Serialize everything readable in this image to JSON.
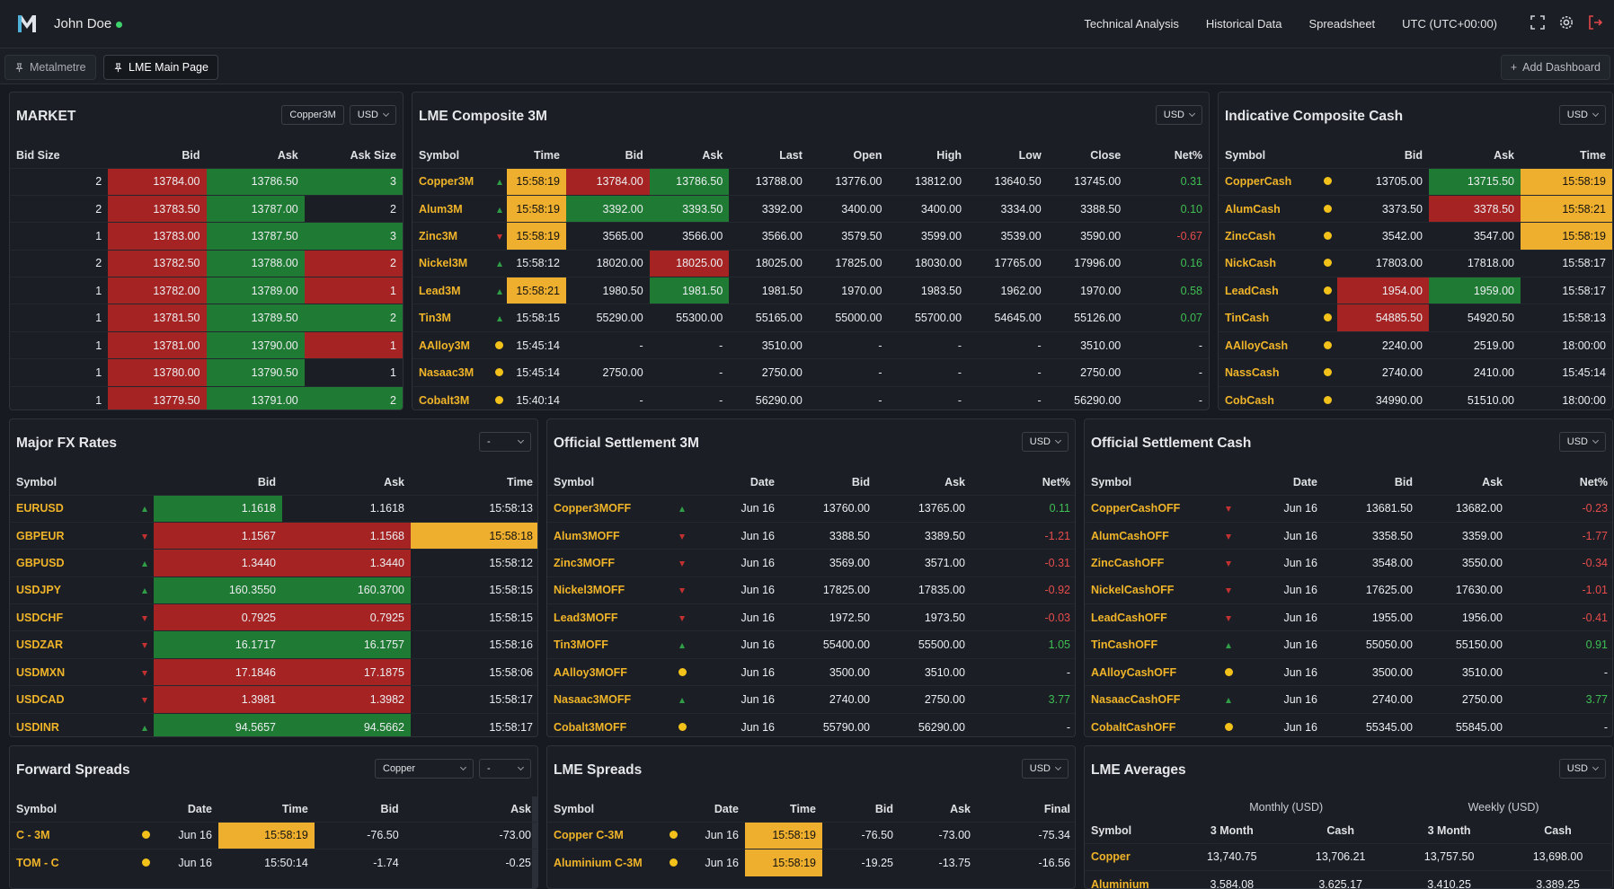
{
  "user": {
    "name": "John Doe"
  },
  "nav": [
    "Technical Analysis",
    "Historical Data",
    "Spreadsheet",
    "UTC (UTC+00:00)"
  ],
  "tabs": [
    "Metalmetre",
    "LME Main Page"
  ],
  "add_dashboard": "Add Dashboard",
  "market": {
    "title": "MARKET",
    "symbol_select": "Copper3M",
    "currency": "USD",
    "headers": [
      "Bid Size",
      "Bid",
      "Ask",
      "Ask Size"
    ],
    "rows": [
      [
        "2",
        "13784.00",
        "13786.50",
        "3",
        "r",
        "g",
        "",
        "g"
      ],
      [
        "2",
        "13783.50",
        "13787.00",
        "2",
        "r",
        "g",
        "",
        ""
      ],
      [
        "1",
        "13783.00",
        "13787.50",
        "3",
        "r",
        "g",
        "",
        "g"
      ],
      [
        "2",
        "13782.50",
        "13788.00",
        "2",
        "r",
        "g",
        "",
        "r"
      ],
      [
        "1",
        "13782.00",
        "13789.00",
        "1",
        "r",
        "g",
        "",
        "r"
      ],
      [
        "1",
        "13781.50",
        "13789.50",
        "2",
        "r",
        "g",
        "",
        "g"
      ],
      [
        "1",
        "13781.00",
        "13790.00",
        "1",
        "r",
        "g",
        "",
        "r"
      ],
      [
        "1",
        "13780.00",
        "13790.50",
        "1",
        "r",
        "g",
        "",
        ""
      ],
      [
        "1",
        "13779.50",
        "13791.00",
        "2",
        "r",
        "g",
        "",
        "g"
      ]
    ]
  },
  "composite3m": {
    "title": "LME Composite 3M",
    "currency": "USD",
    "headers": [
      "Symbol",
      "",
      "Time",
      "Bid",
      "Ask",
      "Last",
      "Open",
      "High",
      "Low",
      "Close",
      "Net%"
    ],
    "rows": [
      {
        "s": "Copper3M",
        "i": "up",
        "t": "15:58:19",
        "tc": "y",
        "b": "13784.00",
        "bc": "r",
        "a": "13786.50",
        "ac": "g",
        "l": "13788.00",
        "o": "13776.00",
        "h": "13812.00",
        "lo": "13640.50",
        "c": "13745.00",
        "n": "0.31",
        "nc": "pos"
      },
      {
        "s": "Alum3M",
        "i": "up",
        "t": "15:58:19",
        "tc": "y",
        "b": "3392.00",
        "bc": "g",
        "a": "3393.50",
        "ac": "g",
        "l": "3392.00",
        "o": "3400.00",
        "h": "3400.00",
        "lo": "3334.00",
        "c": "3388.50",
        "n": "0.10",
        "nc": "pos"
      },
      {
        "s": "Zinc3M",
        "i": "dn",
        "t": "15:58:19",
        "tc": "y",
        "b": "3565.00",
        "bc": "",
        "a": "3566.00",
        "ac": "",
        "l": "3566.00",
        "o": "3579.50",
        "h": "3599.00",
        "lo": "3539.00",
        "c": "3590.00",
        "n": "-0.67",
        "nc": "neg"
      },
      {
        "s": "Nickel3M",
        "i": "up",
        "t": "15:58:12",
        "tc": "",
        "b": "18020.00",
        "bc": "",
        "a": "18025.00",
        "ac": "r",
        "l": "18025.00",
        "o": "17825.00",
        "h": "18030.00",
        "lo": "17765.00",
        "c": "17996.00",
        "n": "0.16",
        "nc": "pos"
      },
      {
        "s": "Lead3M",
        "i": "up",
        "t": "15:58:21",
        "tc": "y",
        "b": "1980.50",
        "bc": "",
        "a": "1981.50",
        "ac": "g",
        "l": "1981.50",
        "o": "1970.00",
        "h": "1983.50",
        "lo": "1962.00",
        "c": "1970.00",
        "n": "0.58",
        "nc": "pos"
      },
      {
        "s": "Tin3M",
        "i": "up",
        "t": "15:58:15",
        "tc": "",
        "b": "55290.00",
        "bc": "",
        "a": "55300.00",
        "ac": "",
        "l": "55165.00",
        "o": "55000.00",
        "h": "55700.00",
        "lo": "54645.00",
        "c": "55126.00",
        "n": "0.07",
        "nc": "pos"
      },
      {
        "s": "AAlloy3M",
        "i": "dot",
        "t": "15:45:14",
        "tc": "",
        "b": "-",
        "bc": "",
        "a": "-",
        "ac": "",
        "l": "3510.00",
        "o": "-",
        "h": "-",
        "lo": "-",
        "c": "3510.00",
        "n": "-",
        "nc": ""
      },
      {
        "s": "Nasaac3M",
        "i": "dot",
        "t": "15:45:14",
        "tc": "",
        "b": "2750.00",
        "bc": "",
        "a": "-",
        "ac": "",
        "l": "2750.00",
        "o": "-",
        "h": "-",
        "lo": "-",
        "c": "2750.00",
        "n": "-",
        "nc": ""
      },
      {
        "s": "Cobalt3M",
        "i": "dot",
        "t": "15:40:14",
        "tc": "",
        "b": "-",
        "bc": "",
        "a": "-",
        "ac": "",
        "l": "56290.00",
        "o": "-",
        "h": "-",
        "lo": "-",
        "c": "56290.00",
        "n": "-",
        "nc": ""
      }
    ]
  },
  "indcash": {
    "title": "Indicative Composite Cash",
    "currency": "USD",
    "headers": [
      "Symbol",
      "",
      "Bid",
      "Ask",
      "Time"
    ],
    "rows": [
      {
        "s": "CopperCash",
        "b": "13705.00",
        "bc": "",
        "a": "13715.50",
        "ac": "g",
        "t": "15:58:19",
        "tc": "y"
      },
      {
        "s": "AlumCash",
        "b": "3373.50",
        "bc": "",
        "a": "3378.50",
        "ac": "r",
        "t": "15:58:21",
        "tc": "y"
      },
      {
        "s": "ZincCash",
        "b": "3542.00",
        "bc": "",
        "a": "3547.00",
        "ac": "",
        "t": "15:58:19",
        "tc": "y"
      },
      {
        "s": "NickCash",
        "b": "17803.00",
        "bc": "",
        "a": "17818.00",
        "ac": "",
        "t": "15:58:17",
        "tc": ""
      },
      {
        "s": "LeadCash",
        "b": "1954.00",
        "bc": "r",
        "a": "1959.00",
        "ac": "g",
        "t": "15:58:17",
        "tc": ""
      },
      {
        "s": "TinCash",
        "b": "54885.50",
        "bc": "r",
        "a": "54920.50",
        "ac": "",
        "t": "15:58:13",
        "tc": ""
      },
      {
        "s": "AAlloyCash",
        "b": "2240.00",
        "bc": "",
        "a": "2519.00",
        "ac": "",
        "t": "18:00:00",
        "tc": ""
      },
      {
        "s": "NassCash",
        "b": "2740.00",
        "bc": "",
        "a": "2410.00",
        "ac": "",
        "t": "15:45:14",
        "tc": ""
      },
      {
        "s": "CobCash",
        "b": "34990.00",
        "bc": "",
        "a": "51510.00",
        "ac": "",
        "t": "18:00:00",
        "tc": ""
      }
    ]
  },
  "fx": {
    "title": "Major FX Rates",
    "select": "-",
    "headers": [
      "Symbol",
      "",
      "Bid",
      "Ask",
      "Time"
    ],
    "rows": [
      {
        "s": "EURUSD",
        "i": "up",
        "b": "1.1618",
        "bc": "g",
        "a": "1.1618",
        "ac": "",
        "t": "15:58:13",
        "tc": ""
      },
      {
        "s": "GBPEUR",
        "i": "dn",
        "b": "1.1567",
        "bc": "r",
        "a": "1.1568",
        "ac": "r",
        "t": "15:58:18",
        "tc": "y"
      },
      {
        "s": "GBPUSD",
        "i": "up",
        "b": "1.3440",
        "bc": "r",
        "a": "1.3440",
        "ac": "r",
        "t": "15:58:12",
        "tc": ""
      },
      {
        "s": "USDJPY",
        "i": "up",
        "b": "160.3550",
        "bc": "g",
        "a": "160.3700",
        "ac": "g",
        "t": "15:58:15",
        "tc": ""
      },
      {
        "s": "USDCHF",
        "i": "dn",
        "b": "0.7925",
        "bc": "r",
        "a": "0.7925",
        "ac": "r",
        "t": "15:58:15",
        "tc": ""
      },
      {
        "s": "USDZAR",
        "i": "dn",
        "b": "16.1717",
        "bc": "g",
        "a": "16.1757",
        "ac": "g",
        "t": "15:58:16",
        "tc": ""
      },
      {
        "s": "USDMXN",
        "i": "dn",
        "b": "17.1846",
        "bc": "r",
        "a": "17.1875",
        "ac": "r",
        "t": "15:58:06",
        "tc": ""
      },
      {
        "s": "USDCAD",
        "i": "dn",
        "b": "1.3981",
        "bc": "r",
        "a": "1.3982",
        "ac": "r",
        "t": "15:58:17",
        "tc": ""
      },
      {
        "s": "USDINR",
        "i": "up",
        "b": "94.5657",
        "bc": "g",
        "a": "94.5662",
        "ac": "g",
        "t": "15:58:17",
        "tc": ""
      }
    ]
  },
  "os3m": {
    "title": "Official Settlement 3M",
    "currency": "USD",
    "headers": [
      "Symbol",
      "",
      "Date",
      "Bid",
      "Ask",
      "Net%"
    ],
    "rows": [
      {
        "s": "Copper3MOFF",
        "i": "up",
        "d": "Jun 16",
        "b": "13760.00",
        "a": "13765.00",
        "n": "0.11",
        "nc": "pos"
      },
      {
        "s": "Alum3MOFF",
        "i": "dn",
        "d": "Jun 16",
        "b": "3388.50",
        "a": "3389.50",
        "n": "-1.21",
        "nc": "neg"
      },
      {
        "s": "Zinc3MOFF",
        "i": "dn",
        "d": "Jun 16",
        "b": "3569.00",
        "a": "3571.00",
        "n": "-0.31",
        "nc": "neg"
      },
      {
        "s": "Nickel3MOFF",
        "i": "dn",
        "d": "Jun 16",
        "b": "17825.00",
        "a": "17835.00",
        "n": "-0.92",
        "nc": "neg"
      },
      {
        "s": "Lead3MOFF",
        "i": "dn",
        "d": "Jun 16",
        "b": "1972.50",
        "a": "1973.50",
        "n": "-0.03",
        "nc": "neg"
      },
      {
        "s": "Tin3MOFF",
        "i": "up",
        "d": "Jun 16",
        "b": "55400.00",
        "a": "55500.00",
        "n": "1.05",
        "nc": "pos"
      },
      {
        "s": "AAlloy3MOFF",
        "i": "dot",
        "d": "Jun 16",
        "b": "3500.00",
        "a": "3510.00",
        "n": "-",
        "nc": ""
      },
      {
        "s": "Nasaac3MOFF",
        "i": "up",
        "d": "Jun 16",
        "b": "2740.00",
        "a": "2750.00",
        "n": "3.77",
        "nc": "pos"
      },
      {
        "s": "Cobalt3MOFF",
        "i": "dot",
        "d": "Jun 16",
        "b": "55790.00",
        "a": "56290.00",
        "n": "-",
        "nc": ""
      }
    ]
  },
  "oscash": {
    "title": "Official Settlement Cash",
    "currency": "USD",
    "headers": [
      "Symbol",
      "",
      "Date",
      "Bid",
      "Ask",
      "Net%"
    ],
    "rows": [
      {
        "s": "CopperCashOFF",
        "i": "dn",
        "d": "Jun 16",
        "b": "13681.50",
        "a": "13682.00",
        "n": "-0.23",
        "nc": "neg"
      },
      {
        "s": "AlumCashOFF",
        "i": "dn",
        "d": "Jun 16",
        "b": "3358.50",
        "a": "3359.00",
        "n": "-1.77",
        "nc": "neg"
      },
      {
        "s": "ZincCashOFF",
        "i": "dn",
        "d": "Jun 16",
        "b": "3548.00",
        "a": "3550.00",
        "n": "-0.34",
        "nc": "neg"
      },
      {
        "s": "NickelCashOFF",
        "i": "dn",
        "d": "Jun 16",
        "b": "17625.00",
        "a": "17630.00",
        "n": "-1.01",
        "nc": "neg"
      },
      {
        "s": "LeadCashOFF",
        "i": "dn",
        "d": "Jun 16",
        "b": "1955.00",
        "a": "1956.00",
        "n": "-0.41",
        "nc": "neg"
      },
      {
        "s": "TinCashOFF",
        "i": "up",
        "d": "Jun 16",
        "b": "55050.00",
        "a": "55150.00",
        "n": "0.91",
        "nc": "pos"
      },
      {
        "s": "AAlloyCashOFF",
        "i": "dot",
        "d": "Jun 16",
        "b": "3500.00",
        "a": "3510.00",
        "n": "-",
        "nc": ""
      },
      {
        "s": "NasaacCashOFF",
        "i": "up",
        "d": "Jun 16",
        "b": "2740.00",
        "a": "2750.00",
        "n": "3.77",
        "nc": "pos"
      },
      {
        "s": "CobaltCashOFF",
        "i": "dot",
        "d": "Jun 16",
        "b": "55345.00",
        "a": "55845.00",
        "n": "-",
        "nc": ""
      }
    ]
  },
  "fwd": {
    "title": "Forward Spreads",
    "metal": "Copper",
    "select": "-",
    "headers": [
      "Symbol",
      "",
      "Date",
      "Time",
      "Bid",
      "Ask"
    ],
    "rows": [
      {
        "s": "C - 3M",
        "d": "Jun 16",
        "t": "15:58:19",
        "tc": "y",
        "b": "-76.50",
        "a": "-73.00"
      },
      {
        "s": "TOM - C",
        "d": "Jun 16",
        "t": "15:50:14",
        "tc": "",
        "b": "-1.74",
        "a": "-0.25"
      }
    ]
  },
  "spreads": {
    "title": "LME Spreads",
    "currency": "USD",
    "headers": [
      "Symbol",
      "",
      "Date",
      "Time",
      "Bid",
      "Ask",
      "Final"
    ],
    "rows": [
      {
        "s": "Copper C-3M",
        "d": "Jun 16",
        "t": "15:58:19",
        "tc": "y",
        "b": "-76.50",
        "a": "-73.00",
        "f": "-75.34"
      },
      {
        "s": "Aluminium C-3M",
        "d": "Jun 16",
        "t": "15:58:19",
        "tc": "y",
        "b": "-19.25",
        "a": "-13.75",
        "f": "-16.56"
      }
    ]
  },
  "averages": {
    "title": "LME Averages",
    "currency": "USD",
    "group_monthly": "Monthly (USD)",
    "group_weekly": "Weekly (USD)",
    "headers": [
      "Symbol",
      "3 Month",
      "Cash",
      "3 Month",
      "Cash"
    ],
    "rows": [
      [
        "Copper",
        "13,740.75",
        "13,706.21",
        "13,757.50",
        "13,698.00"
      ],
      [
        "Aluminium",
        "3,584.08",
        "3,625.17",
        "3,410.25",
        "3,389.25"
      ]
    ]
  },
  "colors": {
    "bid_red": "#a52423",
    "ask_green": "#1f7a33",
    "highlight": "#efaf2e",
    "symbol": "#f0b429"
  }
}
